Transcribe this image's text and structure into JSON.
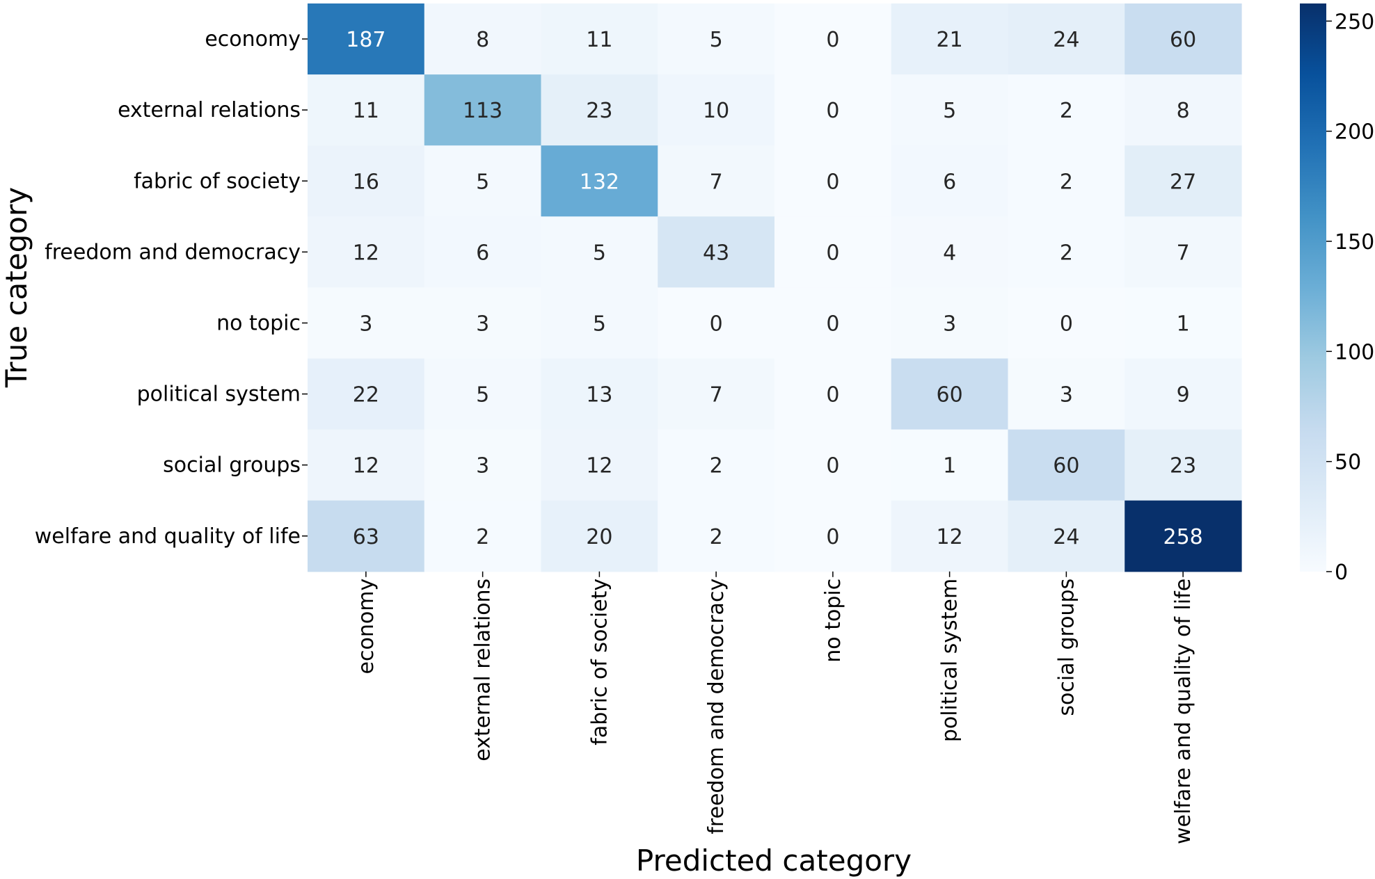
{
  "chart_data": {
    "type": "heatmap",
    "title": "",
    "xlabel": "Predicted category",
    "ylabel": "True category",
    "x_categories": [
      "economy",
      "external relations",
      "fabric of society",
      "freedom and democracy",
      "no topic",
      "political system",
      "social groups",
      "welfare and quality of life"
    ],
    "y_categories": [
      "economy",
      "external relations",
      "fabric of society",
      "freedom and democracy",
      "no topic",
      "political system",
      "social groups",
      "welfare and quality of life"
    ],
    "values": [
      [
        187,
        8,
        11,
        5,
        0,
        21,
        24,
        60
      ],
      [
        11,
        113,
        23,
        10,
        0,
        5,
        2,
        8
      ],
      [
        16,
        5,
        132,
        7,
        0,
        6,
        2,
        27
      ],
      [
        12,
        6,
        5,
        43,
        0,
        4,
        2,
        7
      ],
      [
        3,
        3,
        5,
        0,
        0,
        3,
        0,
        1
      ],
      [
        22,
        5,
        13,
        7,
        0,
        60,
        3,
        9
      ],
      [
        12,
        3,
        12,
        2,
        0,
        1,
        60,
        23
      ],
      [
        63,
        2,
        20,
        2,
        0,
        12,
        24,
        258
      ]
    ],
    "colorbar": {
      "colormap": "Blues",
      "vmin": 0,
      "vmax": 258,
      "ticks": [
        0,
        50,
        100,
        150,
        200,
        250
      ]
    },
    "annotations": true,
    "grid": false,
    "legend": "colorbar-right"
  }
}
